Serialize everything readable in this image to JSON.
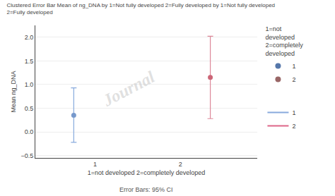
{
  "chart_data": {
    "type": "scatter",
    "title": "Clustered Error Bar Mean of ng_DNA by 1=Not fully developed 2=Fully developed by 1=Not fully developed\n2=Fully developed",
    "x_label": "1=not developed 2=completely developed",
    "y_label": "Mean ng_DNA",
    "footer": "Error Bars: 95% CI",
    "watermark": "Journal",
    "xlim": [
      0.3,
      2.9
    ],
    "xticks": [
      1,
      2
    ],
    "ylim": [
      -0.55,
      2.25
    ],
    "yticks": [
      {
        "value": -0.5,
        "label": "−0.5"
      },
      {
        "value": 0,
        "label": "0.0"
      },
      0.5,
      {
        "value": 1,
        "label": "1.0"
      },
      1.5,
      {
        "value": 2,
        "label": "2.0"
      }
    ],
    "grid": "y",
    "marker": "circle",
    "legend": "right",
    "legend_title": "1=not\ndeveloped\n2=completely\ndeveloped",
    "legend_colors": [
      "#5577aa",
      "#996666"
    ],
    "ci_legend_colors": [
      "#88aadd",
      "#dd6688"
    ],
    "series": [
      {
        "name": "1",
        "color": "#7799cc",
        "error_color": "#88aadd",
        "x": [
          0.75
        ],
        "values": [
          0.35
        ],
        "ci_low": [
          -0.22
        ],
        "ci_high": [
          0.93
        ]
      },
      {
        "name": "2",
        "color": "#cc6677",
        "error_color": "#dd8899",
        "x": [
          2.35
        ],
        "values": [
          1.15
        ],
        "ci_low": [
          0.28
        ],
        "ci_high": [
          2.02
        ]
      }
    ]
  }
}
